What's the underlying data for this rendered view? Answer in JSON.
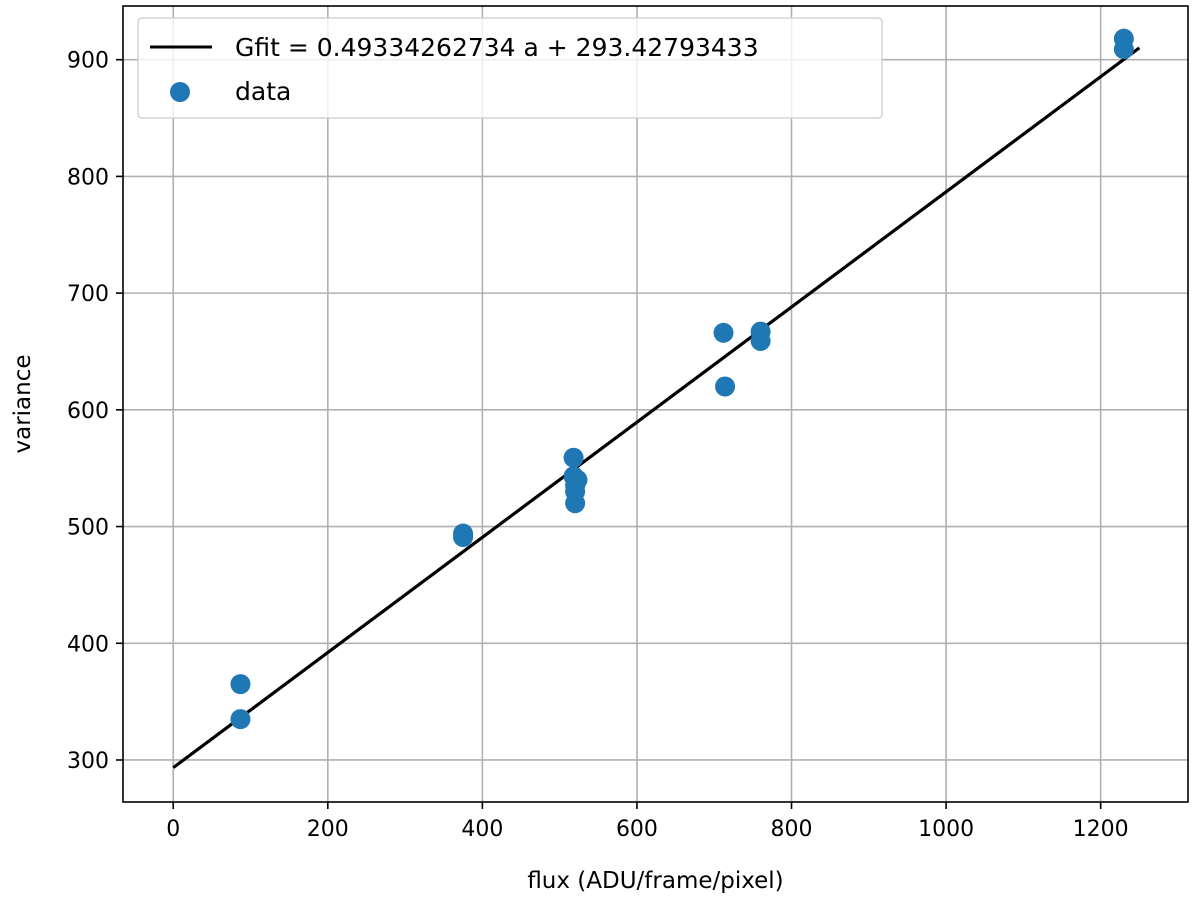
{
  "chart_data": {
    "type": "scatter",
    "title": "",
    "xlabel": "flux (ADU/frame/pixel)",
    "ylabel": "variance",
    "xlim": [
      -65,
      1313
    ],
    "ylim": [
      264,
      946
    ],
    "x_ticks": [
      0,
      200,
      400,
      600,
      800,
      1000,
      1200
    ],
    "y_ticks": [
      300,
      400,
      500,
      600,
      700,
      800,
      900
    ],
    "grid": true,
    "legend_position": "top-left",
    "series": [
      {
        "name": "Gfit = 0.49334262734 a + 293.42793433",
        "kind": "line",
        "color": "#000000",
        "x": [
          0,
          1250
        ],
        "y": [
          293.43,
          910.11
        ]
      },
      {
        "name": "data",
        "kind": "scatter",
        "color": "#1f77b4",
        "x": [
          87,
          87,
          375,
          375,
          518,
          518,
          520,
          520,
          520,
          523,
          712,
          714,
          760,
          760,
          1230,
          1230
        ],
        "y": [
          365,
          335,
          494,
          491,
          559,
          543,
          530,
          520,
          535,
          540,
          666,
          620,
          667,
          659,
          918,
          909
        ]
      }
    ]
  }
}
